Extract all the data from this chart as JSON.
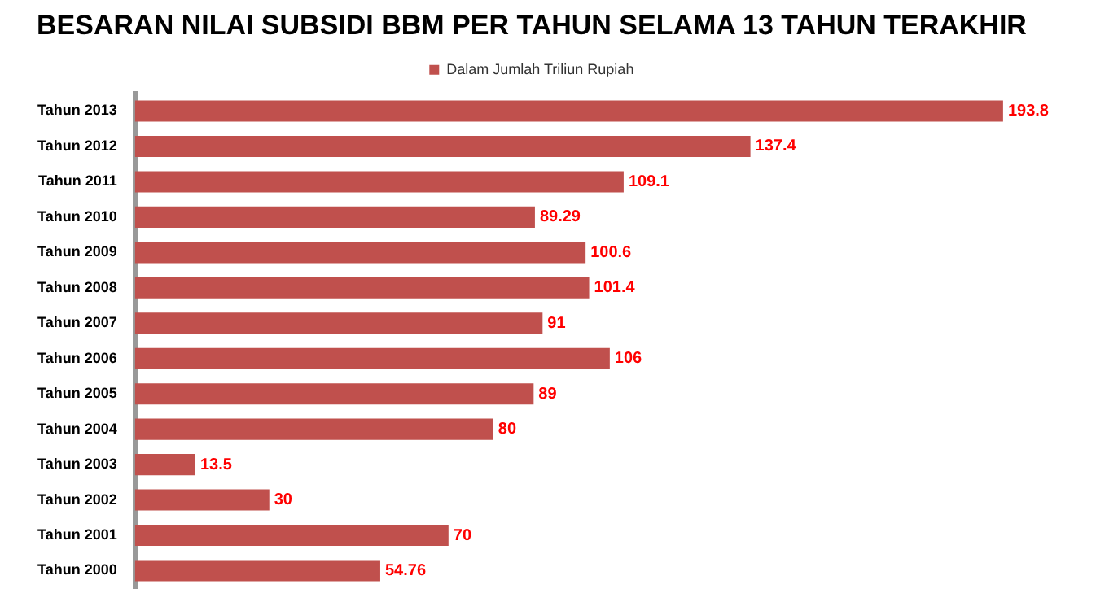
{
  "chart_data": {
    "type": "bar",
    "orientation": "horizontal",
    "title": "BESARAN NILAI SUBSIDI BBM PER TAHUN SELAMA 13 TAHUN TERAKHIR",
    "categories": [
      "Tahun 2013",
      "Tahun 2012",
      "Tahun 2011",
      "Tahun 2010",
      "Tahun 2009",
      "Tahun 2008",
      "Tahun 2007",
      "Tahun 2006",
      "Tahun 2005",
      "Tahun 2004",
      "Tahun 2003",
      "Tahun 2002",
      "Tahun 2001",
      "Tahun 2000"
    ],
    "series": [
      {
        "name": "Dalam Jumlah Triliun Rupiah",
        "color": "#c0504d",
        "values": [
          193.8,
          137.4,
          109.1,
          89.29,
          100.6,
          101.4,
          91,
          106,
          89,
          80,
          13.5,
          30,
          70,
          54.76
        ]
      }
    ],
    "data_labels": true,
    "legend": "top",
    "grid": false,
    "tick_labels": "y"
  }
}
